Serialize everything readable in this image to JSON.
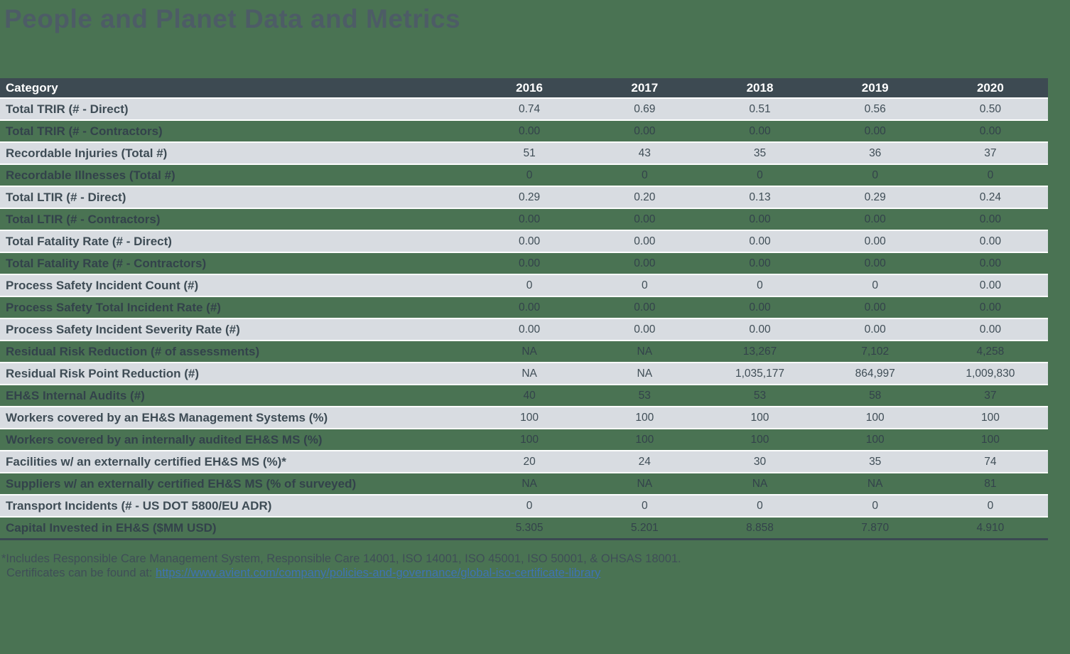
{
  "title": "People and Planet Data and Metrics",
  "colors": {
    "page_background": "#4A7353",
    "header_background": "#3D4A52",
    "row_light_background": "#D8DCE1",
    "row_separator": "#FDFEFE",
    "table_bottom_rule": "#3B4952",
    "text_dark": "#3E4C55",
    "header_text": "#FFFFFF",
    "title_color": "#4D5C66",
    "link_blue": "#3E73B3"
  },
  "table": {
    "header": {
      "category": "Category",
      "years": [
        "2016",
        "2017",
        "2018",
        "2019",
        "2020"
      ]
    },
    "rows": [
      {
        "label": "Total TRIR (# - Direct)",
        "values": [
          "0.74",
          "0.69",
          "0.51",
          "0.56",
          "0.50"
        ]
      },
      {
        "label": "Total TRIR (# - Contractors)",
        "values": [
          "0.00",
          "0.00",
          "0.00",
          "0.00",
          "0.00"
        ]
      },
      {
        "label": "Recordable Injuries (Total #)",
        "values": [
          "51",
          "43",
          "35",
          "36",
          "37"
        ]
      },
      {
        "label": "Recordable Illnesses (Total #)",
        "values": [
          "0",
          "0",
          "0",
          "0",
          "0"
        ]
      },
      {
        "label": "Total LTIR (# - Direct)",
        "values": [
          "0.29",
          "0.20",
          "0.13",
          "0.29",
          "0.24"
        ]
      },
      {
        "label": "Total LTIR (# - Contractors)",
        "values": [
          "0.00",
          "0.00",
          "0.00",
          "0.00",
          "0.00"
        ]
      },
      {
        "label": "Total Fatality Rate (# - Direct)",
        "values": [
          "0.00",
          "0.00",
          "0.00",
          "0.00",
          "0.00"
        ]
      },
      {
        "label": "Total Fatality Rate (# - Contractors)",
        "values": [
          "0.00",
          "0.00",
          "0.00",
          "0.00",
          "0.00"
        ]
      },
      {
        "label": "Process Safety Incident Count (#)",
        "values": [
          "0",
          "0",
          "0",
          "0",
          "0.00"
        ]
      },
      {
        "label": "Process Safety Total Incident Rate (#)",
        "values": [
          "0.00",
          "0.00",
          "0.00",
          "0.00",
          "0.00"
        ]
      },
      {
        "label": "Process Safety Incident Severity Rate (#)",
        "values": [
          "0.00",
          "0.00",
          "0.00",
          "0.00",
          "0.00"
        ]
      },
      {
        "label": "Residual Risk Reduction (# of assessments)",
        "values": [
          "NA",
          "NA",
          "13,267",
          "7,102",
          "4,258"
        ]
      },
      {
        "label": "Residual Risk Point Reduction (#)",
        "values": [
          "NA",
          "NA",
          "1,035,177",
          "864,997",
          "1,009,830"
        ]
      },
      {
        "label": "EH&S Internal Audits (#)",
        "values": [
          "40",
          "53",
          "53",
          "58",
          "37"
        ]
      },
      {
        "label": "Workers covered by an EH&S Management Systems (%)",
        "values": [
          "100",
          "100",
          "100",
          "100",
          "100"
        ]
      },
      {
        "label": "Workers covered by an internally audited EH&S MS (%)",
        "values": [
          "100",
          "100",
          "100",
          "100",
          "100"
        ]
      },
      {
        "label": "Facilities w/ an externally certified EH&S MS (%)*",
        "values": [
          "20",
          "24",
          "30",
          "35",
          "74"
        ]
      },
      {
        "label": "Suppliers w/ an externally certified EH&S MS (% of surveyed)",
        "values": [
          "NA",
          "NA",
          "NA",
          "NA",
          "81"
        ]
      },
      {
        "label": "Transport Incidents (# - US DOT 5800/EU ADR)",
        "values": [
          "0",
          "0",
          "0",
          "0",
          "0"
        ]
      },
      {
        "label": "Capital Invested in EH&S ($MM USD)",
        "values": [
          "5.305",
          "5.201",
          "8.858",
          "7.870",
          "4.910"
        ]
      }
    ]
  },
  "footnote": {
    "line1": "*Includes Responsible Care Management System, Responsible Care 14001, ISO 14001, ISO 45001, ISO 50001, & OHSAS 18001.",
    "line2_prefix": "Certificates can be found at: ",
    "link_text": "https://www.avient.com/company/policies-and-governance/global-iso-certificate-library"
  }
}
